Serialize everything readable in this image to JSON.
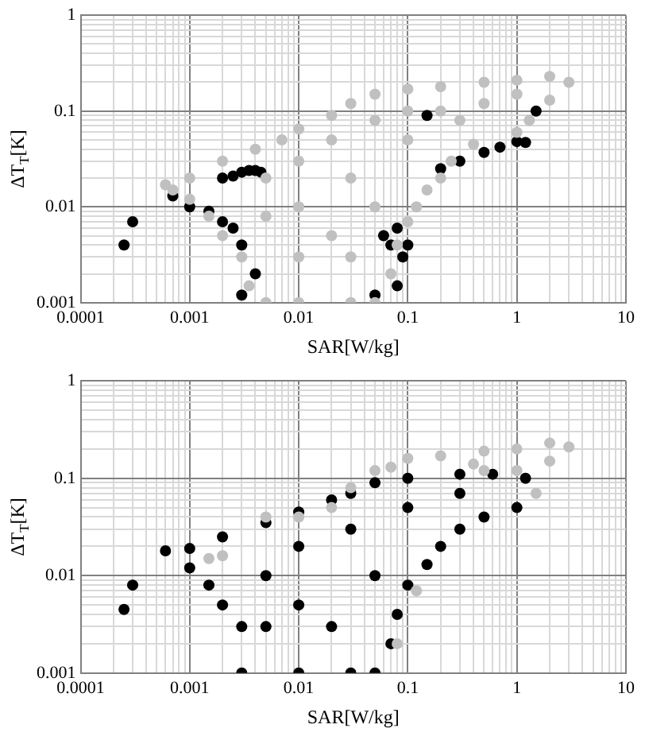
{
  "chart_data": [
    {
      "type": "scatter",
      "xlabel": "SAR[W/kg]",
      "ylabel": "ΔT$_{T}$[K]",
      "log": "xy",
      "grid": true,
      "legend": false,
      "marker": "circle",
      "xlim": [
        0.0001,
        10
      ],
      "xticks": [
        0.0001,
        {
          "value": 0.0002,
          "label": null
        },
        {
          "value": 0.0003,
          "label": null
        },
        {
          "value": 0.0004,
          "label": null
        },
        {
          "value": 0.0005,
          "label": null
        },
        {
          "value": 0.0006,
          "label": null
        },
        {
          "value": 0.0007,
          "label": null
        },
        {
          "value": 0.0008,
          "label": null
        },
        {
          "value": 0.0009,
          "label": null
        },
        0.001,
        {
          "value": 0.002,
          "label": null
        },
        {
          "value": 0.003,
          "label": null
        },
        {
          "value": 0.004,
          "label": null
        },
        {
          "value": 0.005,
          "label": null
        },
        {
          "value": 0.006,
          "label": null
        },
        {
          "value": 0.007,
          "label": null
        },
        {
          "value": 0.008,
          "label": null
        },
        {
          "value": 0.009,
          "label": null
        },
        0.01,
        {
          "value": 0.02,
          "label": null
        },
        {
          "value": 0.03,
          "label": null
        },
        {
          "value": 0.04,
          "label": null
        },
        {
          "value": 0.05,
          "label": null
        },
        {
          "value": 0.06,
          "label": null
        },
        {
          "value": 0.07,
          "label": null
        },
        {
          "value": 0.08,
          "label": null
        },
        {
          "value": 0.09,
          "label": null
        },
        0.1,
        {
          "value": 0.2,
          "label": null
        },
        {
          "value": 0.3,
          "label": null
        },
        {
          "value": 0.4,
          "label": null
        },
        {
          "value": 0.5,
          "label": null
        },
        {
          "value": 0.6,
          "label": null
        },
        {
          "value": 0.7,
          "label": null
        },
        {
          "value": 0.8,
          "label": null
        },
        {
          "value": 0.9,
          "label": null
        },
        1,
        {
          "value": 2,
          "label": null
        },
        {
          "value": 3,
          "label": null
        },
        {
          "value": 4,
          "label": null
        },
        {
          "value": 5,
          "label": null
        },
        {
          "value": 6,
          "label": null
        },
        {
          "value": 7,
          "label": null
        },
        {
          "value": 8,
          "label": null
        },
        {
          "value": 9,
          "label": null
        },
        10
      ],
      "ylim": [
        0.001,
        1
      ],
      "yticks": [
        0.001,
        {
          "value": 0.002,
          "label": null
        },
        {
          "value": 0.003,
          "label": null
        },
        {
          "value": 0.004,
          "label": null
        },
        {
          "value": 0.005,
          "label": null
        },
        {
          "value": 0.006,
          "label": null
        },
        {
          "value": 0.007,
          "label": null
        },
        {
          "value": 0.008,
          "label": null
        },
        {
          "value": 0.009,
          "label": null
        },
        0.01,
        {
          "value": 0.02,
          "label": null
        },
        {
          "value": 0.03,
          "label": null
        },
        {
          "value": 0.04,
          "label": null
        },
        {
          "value": 0.05,
          "label": null
        },
        {
          "value": 0.06,
          "label": null
        },
        {
          "value": 0.07,
          "label": null
        },
        {
          "value": 0.08,
          "label": null
        },
        {
          "value": 0.09,
          "label": null
        },
        0.1,
        {
          "value": 0.2,
          "label": null
        },
        {
          "value": 0.3,
          "label": null
        },
        {
          "value": 0.4,
          "label": null
        },
        {
          "value": 0.5,
          "label": null
        },
        {
          "value": 0.6,
          "label": null
        },
        {
          "value": 0.7,
          "label": null
        },
        {
          "value": 0.8,
          "label": null
        },
        {
          "value": 0.9,
          "label": null
        },
        1
      ],
      "series": [
        {
          "color": "#c0c0c0",
          "x": [
            0.0006,
            0.001,
            0.002,
            0.004,
            0.007,
            0.01,
            0.02,
            0.03,
            0.05,
            0.1,
            0.2,
            0.5,
            1,
            2,
            3,
            2,
            1.3,
            1,
            0.4,
            0.25,
            0.2,
            0.15,
            0.12,
            0.1,
            0.08,
            0.07,
            0.05,
            0.03,
            0.01,
            0.005,
            0.0035,
            0.003,
            0.002,
            0.0015,
            0.001,
            0.0007,
            0.005,
            0.01,
            0.01,
            0.02,
            0.02,
            0.03,
            0.05,
            0.05,
            0.1,
            0.1,
            0.2,
            0.3,
            0.5,
            1,
            0.01,
            0.03,
            0.005
          ],
          "values": [
            0.017,
            0.02,
            0.03,
            0.04,
            0.05,
            0.065,
            0.09,
            0.12,
            0.15,
            0.17,
            0.18,
            0.2,
            0.21,
            0.23,
            0.2,
            0.13,
            0.08,
            0.06,
            0.045,
            0.03,
            0.02,
            0.015,
            0.01,
            0.007,
            0.004,
            0.002,
            0.001,
            0.001,
            0.001,
            0.001,
            0.0015,
            0.003,
            0.005,
            0.008,
            0.012,
            0.015,
            0.02,
            0.01,
            0.03,
            0.005,
            0.05,
            0.02,
            0.08,
            0.01,
            0.05,
            0.1,
            0.1,
            0.08,
            0.12,
            0.15,
            0.003,
            0.003,
            0.008
          ]
        },
        {
          "color": "#000000",
          "x": [
            0.0025,
            0.003,
            0.0035,
            0.004,
            0.0045,
            0.002,
            0.2,
            0.3,
            0.5,
            0.7,
            1,
            1.2,
            0.0007,
            0.001,
            0.0015,
            0.002,
            0.0025,
            0.003,
            0.004,
            0.003,
            0.0003,
            0.00025,
            0.06,
            0.07,
            0.08,
            0.09,
            0.1,
            0.08,
            0.05,
            1.5,
            0.15
          ],
          "values": [
            0.021,
            0.023,
            0.024,
            0.024,
            0.023,
            0.02,
            0.025,
            0.03,
            0.037,
            0.042,
            0.048,
            0.047,
            0.013,
            0.01,
            0.009,
            0.007,
            0.006,
            0.004,
            0.002,
            0.0012,
            0.007,
            0.004,
            0.005,
            0.004,
            0.006,
            0.003,
            0.004,
            0.0015,
            0.0012,
            0.1,
            0.09
          ]
        }
      ]
    },
    {
      "type": "scatter",
      "xlabel": "SAR[W/kg]",
      "ylabel": "ΔT$_{T}$[K]",
      "log": "xy",
      "grid": true,
      "legend": false,
      "marker": "circle",
      "xlim": [
        0.0001,
        10
      ],
      "xticks": [
        0.0001,
        {
          "value": 0.0002,
          "label": null
        },
        {
          "value": 0.0003,
          "label": null
        },
        {
          "value": 0.0004,
          "label": null
        },
        {
          "value": 0.0005,
          "label": null
        },
        {
          "value": 0.0006,
          "label": null
        },
        {
          "value": 0.0007,
          "label": null
        },
        {
          "value": 0.0008,
          "label": null
        },
        {
          "value": 0.0009,
          "label": null
        },
        0.001,
        {
          "value": 0.002,
          "label": null
        },
        {
          "value": 0.003,
          "label": null
        },
        {
          "value": 0.004,
          "label": null
        },
        {
          "value": 0.005,
          "label": null
        },
        {
          "value": 0.006,
          "label": null
        },
        {
          "value": 0.007,
          "label": null
        },
        {
          "value": 0.008,
          "label": null
        },
        {
          "value": 0.009,
          "label": null
        },
        0.01,
        {
          "value": 0.02,
          "label": null
        },
        {
          "value": 0.03,
          "label": null
        },
        {
          "value": 0.04,
          "label": null
        },
        {
          "value": 0.05,
          "label": null
        },
        {
          "value": 0.06,
          "label": null
        },
        {
          "value": 0.07,
          "label": null
        },
        {
          "value": 0.08,
          "label": null
        },
        {
          "value": 0.09,
          "label": null
        },
        0.1,
        {
          "value": 0.2,
          "label": null
        },
        {
          "value": 0.3,
          "label": null
        },
        {
          "value": 0.4,
          "label": null
        },
        {
          "value": 0.5,
          "label": null
        },
        {
          "value": 0.6,
          "label": null
        },
        {
          "value": 0.7,
          "label": null
        },
        {
          "value": 0.8,
          "label": null
        },
        {
          "value": 0.9,
          "label": null
        },
        1,
        {
          "value": 2,
          "label": null
        },
        {
          "value": 3,
          "label": null
        },
        {
          "value": 4,
          "label": null
        },
        {
          "value": 5,
          "label": null
        },
        {
          "value": 6,
          "label": null
        },
        {
          "value": 7,
          "label": null
        },
        {
          "value": 8,
          "label": null
        },
        {
          "value": 9,
          "label": null
        },
        10
      ],
      "ylim": [
        0.001,
        1
      ],
      "yticks": [
        0.001,
        {
          "value": 0.002,
          "label": null
        },
        {
          "value": 0.003,
          "label": null
        },
        {
          "value": 0.004,
          "label": null
        },
        {
          "value": 0.005,
          "label": null
        },
        {
          "value": 0.006,
          "label": null
        },
        {
          "value": 0.007,
          "label": null
        },
        {
          "value": 0.008,
          "label": null
        },
        {
          "value": 0.009,
          "label": null
        },
        0.01,
        {
          "value": 0.02,
          "label": null
        },
        {
          "value": 0.03,
          "label": null
        },
        {
          "value": 0.04,
          "label": null
        },
        {
          "value": 0.05,
          "label": null
        },
        {
          "value": 0.06,
          "label": null
        },
        {
          "value": 0.07,
          "label": null
        },
        {
          "value": 0.08,
          "label": null
        },
        {
          "value": 0.09,
          "label": null
        },
        0.1,
        {
          "value": 0.2,
          "label": null
        },
        {
          "value": 0.3,
          "label": null
        },
        {
          "value": 0.4,
          "label": null
        },
        {
          "value": 0.5,
          "label": null
        },
        {
          "value": 0.6,
          "label": null
        },
        {
          "value": 0.7,
          "label": null
        },
        {
          "value": 0.8,
          "label": null
        },
        {
          "value": 0.9,
          "label": null
        },
        1
      ],
      "series": [
        {
          "color": "#c0c0c0",
          "x": [
            0.02,
            0.03,
            0.05,
            0.1,
            0.2,
            0.5,
            1,
            2,
            3,
            2,
            1,
            0.5,
            0.4,
            0.07,
            0.005,
            0.01,
            0.0015,
            0.002,
            1.5,
            0.12,
            0.08
          ],
          "values": [
            0.05,
            0.08,
            0.12,
            0.16,
            0.17,
            0.19,
            0.2,
            0.23,
            0.21,
            0.15,
            0.12,
            0.12,
            0.14,
            0.13,
            0.04,
            0.04,
            0.015,
            0.016,
            0.07,
            0.007,
            0.002
          ]
        },
        {
          "color": "#000000",
          "x": [
            0.0006,
            0.001,
            0.002,
            0.005,
            0.01,
            0.02,
            0.03,
            0.05,
            0.1,
            0.3,
            0.6,
            1.2,
            1,
            0.5,
            0.3,
            0.2,
            0.15,
            0.1,
            0.08,
            0.07,
            0.05,
            0.03,
            0.01,
            0.003,
            0.003,
            0.002,
            0.0015,
            0.001,
            0.005,
            0.01,
            0.01,
            0.03,
            0.05,
            0.1,
            0.3,
            0.02,
            0.005,
            0.0003,
            0.00025
          ],
          "values": [
            0.018,
            0.019,
            0.025,
            0.035,
            0.045,
            0.06,
            0.07,
            0.09,
            0.1,
            0.11,
            0.11,
            0.1,
            0.05,
            0.04,
            0.03,
            0.02,
            0.013,
            0.008,
            0.004,
            0.002,
            0.001,
            0.001,
            0.001,
            0.001,
            0.003,
            0.005,
            0.008,
            0.012,
            0.01,
            0.005,
            0.02,
            0.03,
            0.01,
            0.05,
            0.07,
            0.003,
            0.003,
            0.008,
            0.0045
          ]
        }
      ]
    }
  ]
}
